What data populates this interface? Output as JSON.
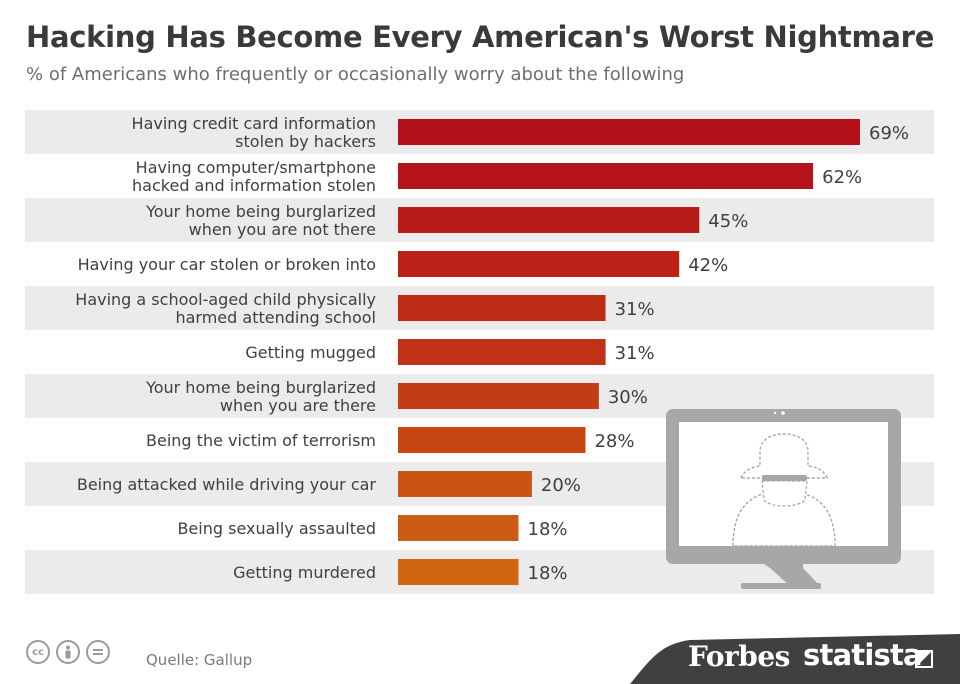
{
  "title": "Hacking Has Become Every American's Worst Nightmare",
  "subtitle": "% of Americans who frequently or occasionally worry about the following",
  "source": "Quelle: Gallup",
  "brands": {
    "forbes": "Forbes",
    "statista": "statista"
  },
  "license_icons": [
    "cc-icon",
    "attribution-icon",
    "no-derivatives-icon"
  ],
  "illustration": "monitor-hacker-icon",
  "chart_data": {
    "type": "bar",
    "orientation": "horizontal",
    "categories": [
      "Having credit card information\nstolen by hackers",
      "Having computer/smartphone\nhacked and information stolen",
      "Your home being burglarized\nwhen you are not there",
      "Having your car stolen or broken into",
      "Having a school-aged child physically\nharmed attending school",
      "Getting mugged",
      "Your home being burglarized\nwhen you are there",
      "Being the victim of terrorism",
      "Being attacked while driving your car",
      "Being sexually assaulted",
      "Getting murdered"
    ],
    "values": [
      69,
      62,
      45,
      42,
      31,
      31,
      30,
      28,
      20,
      18,
      18
    ],
    "value_labels": [
      "69%",
      "62%",
      "45%",
      "42%",
      "31%",
      "31%",
      "30%",
      "28%",
      "20%",
      "18%",
      "18%"
    ],
    "bar_colors": [
      "#b3121a",
      "#b5141a",
      "#b81c19",
      "#ba2218",
      "#bd2c17",
      "#bf3216",
      "#c23c15",
      "#c64614",
      "#ca5414",
      "#cd5c13",
      "#d06612"
    ],
    "row_stripe_color": "#ebebeb",
    "xlim": [
      0,
      69
    ],
    "grid": false,
    "legend": "none"
  }
}
